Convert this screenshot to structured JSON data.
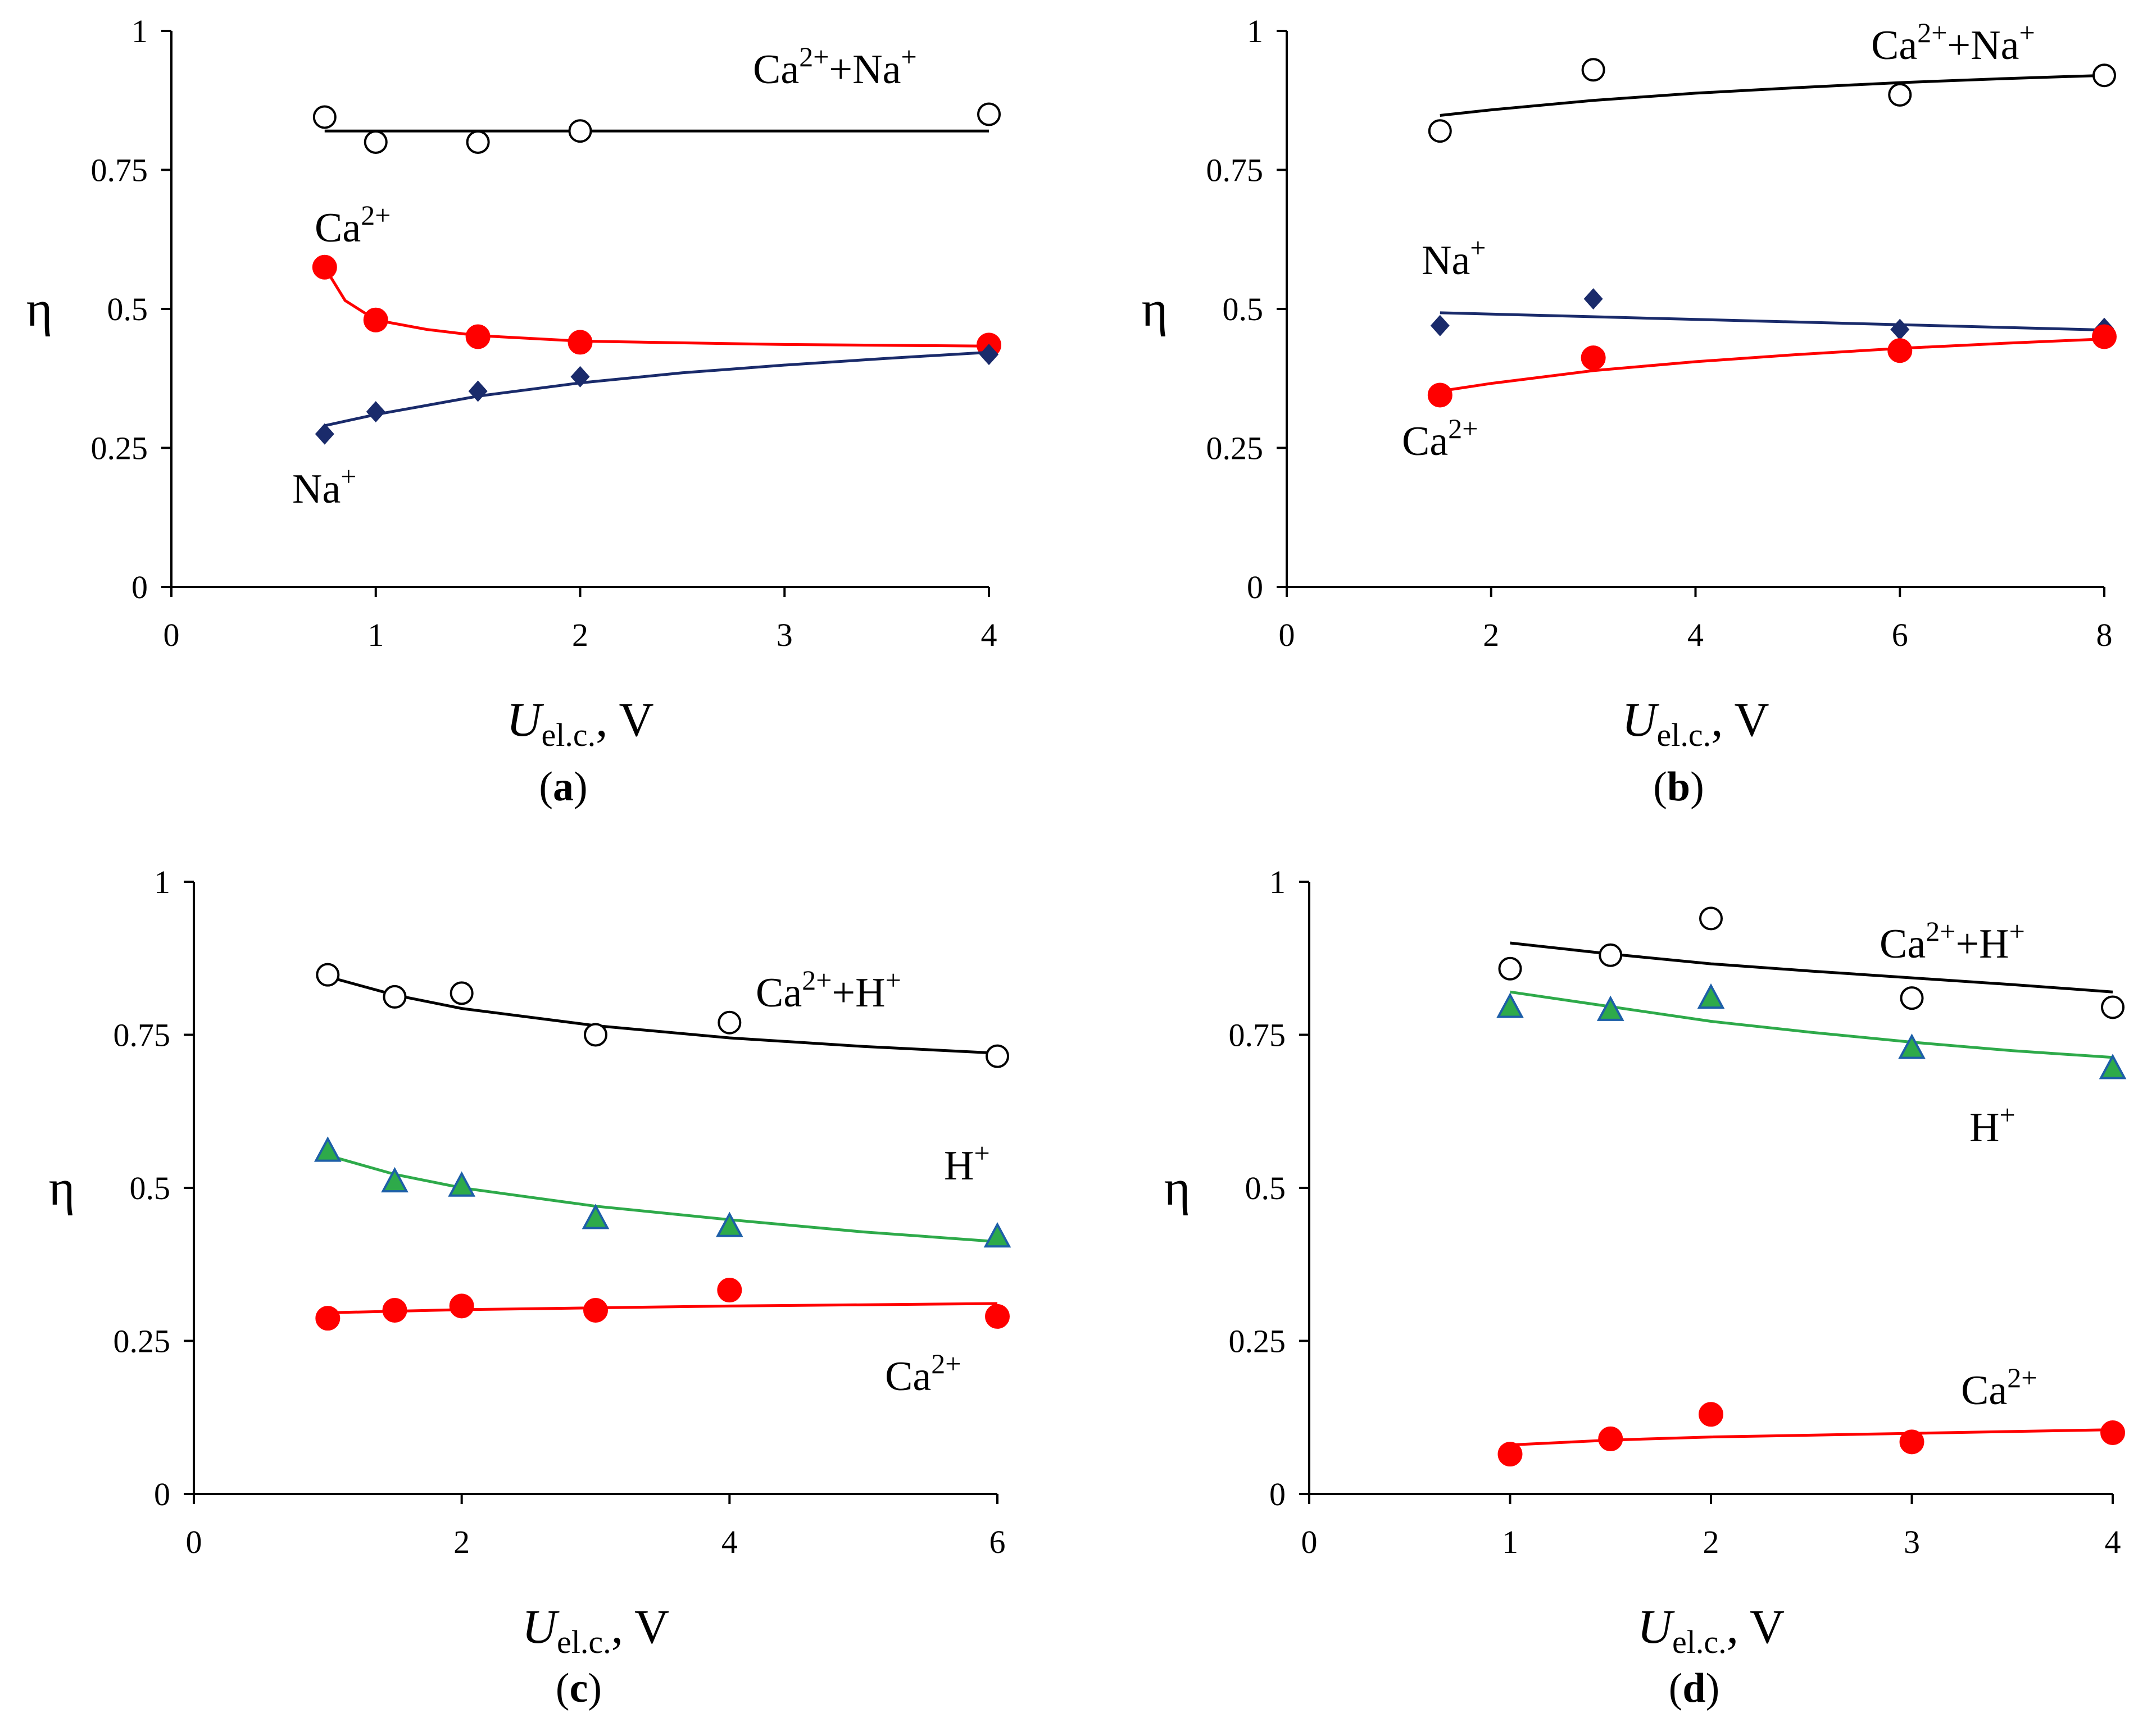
{
  "chart_data": [
    {
      "panel": "a",
      "type": "scatter",
      "tag": "a",
      "ylabel": "η",
      "xlabel": {
        "main": "U",
        "sub": "el.c.",
        "unit": ", V"
      },
      "xlim": [
        0,
        4
      ],
      "ylim": [
        0,
        1
      ],
      "xticks": [
        0,
        1,
        2,
        3,
        4
      ],
      "xtick_labels": [
        "0",
        "1",
        "2",
        "3",
        "4"
      ],
      "yticks": [
        0,
        0.25,
        0.5,
        0.75,
        1
      ],
      "ytick_labels": [
        "0",
        "0.25",
        "0.5",
        "0.75",
        "1"
      ],
      "series": [
        {
          "label": {
            "base": "Ca",
            "sup": "2+",
            "mid": "+Na",
            "sup2": "+"
          },
          "marker": "open-circle",
          "color": "#000000",
          "points": [
            [
              0.75,
              0.845
            ],
            [
              1,
              0.8
            ],
            [
              1.5,
              0.8
            ],
            [
              2,
              0.82
            ],
            [
              4,
              0.85
            ]
          ],
          "fit": [
            [
              0.75,
              0.82
            ],
            [
              4,
              0.82
            ]
          ]
        },
        {
          "label": {
            "base": "Ca",
            "sup": "2+"
          },
          "marker": "filled-circle",
          "color": "#ff0000",
          "points": [
            [
              0.75,
              0.575
            ],
            [
              1,
              0.48
            ],
            [
              1.5,
              0.45
            ],
            [
              2,
              0.44
            ],
            [
              4,
              0.435
            ]
          ],
          "fit": [
            [
              0.75,
              0.575
            ],
            [
              0.85,
              0.515
            ],
            [
              1,
              0.48
            ],
            [
              1.25,
              0.463
            ],
            [
              1.5,
              0.452
            ],
            [
              2,
              0.442
            ],
            [
              3,
              0.436
            ],
            [
              4,
              0.433
            ]
          ]
        },
        {
          "label": {
            "base": "Na",
            "sup": "+"
          },
          "marker": "diamond",
          "color": "#1a2b6b",
          "points": [
            [
              0.75,
              0.275
            ],
            [
              1,
              0.315
            ],
            [
              1.5,
              0.352
            ],
            [
              2,
              0.378
            ],
            [
              4,
              0.418
            ]
          ],
          "fit": [
            [
              0.75,
              0.29
            ],
            [
              1,
              0.31
            ],
            [
              1.5,
              0.343
            ],
            [
              2,
              0.367
            ],
            [
              2.5,
              0.385
            ],
            [
              3,
              0.399
            ],
            [
              3.5,
              0.411
            ],
            [
              4,
              0.422
            ]
          ]
        }
      ]
    },
    {
      "panel": "b",
      "type": "scatter",
      "tag": "b",
      "ylabel": "η",
      "xlabel": {
        "main": "U",
        "sub": "el.c.",
        "unit": ", V"
      },
      "xlim": [
        0,
        8
      ],
      "ylim": [
        0,
        1
      ],
      "xticks": [
        0,
        2,
        4,
        6,
        8
      ],
      "xtick_labels": [
        "0",
        "2",
        "4",
        "6",
        "8"
      ],
      "yticks": [
        0,
        0.25,
        0.5,
        0.75,
        1
      ],
      "ytick_labels": [
        "0",
        "0.25",
        "0.5",
        "0.75",
        "1"
      ],
      "series": [
        {
          "label": {
            "base": "Ca",
            "sup": "2+",
            "mid": "+Na",
            "sup2": "+"
          },
          "marker": "open-circle",
          "color": "#000000",
          "points": [
            [
              1.5,
              0.82
            ],
            [
              3,
              0.93
            ],
            [
              6,
              0.885
            ],
            [
              8,
              0.92
            ]
          ],
          "fit": [
            [
              1.5,
              0.848
            ],
            [
              2,
              0.858
            ],
            [
              3,
              0.875
            ],
            [
              4,
              0.888
            ],
            [
              5,
              0.898
            ],
            [
              6,
              0.907
            ],
            [
              7,
              0.914
            ],
            [
              8,
              0.92
            ]
          ]
        },
        {
          "label": {
            "base": "Na",
            "sup": "+"
          },
          "marker": "diamond",
          "color": "#1a2b6b",
          "points": [
            [
              1.5,
              0.47
            ],
            [
              3,
              0.518
            ],
            [
              6,
              0.463
            ],
            [
              8,
              0.465
            ]
          ],
          "fit": [
            [
              1.5,
              0.493
            ],
            [
              8,
              0.462
            ]
          ]
        },
        {
          "label": {
            "base": "Ca",
            "sup": "2+"
          },
          "marker": "filled-circle",
          "color": "#ff0000",
          "points": [
            [
              1.5,
              0.345
            ],
            [
              3,
              0.412
            ],
            [
              6,
              0.425
            ],
            [
              8,
              0.45
            ]
          ],
          "fit": [
            [
              1.5,
              0.352
            ],
            [
              2,
              0.366
            ],
            [
              3,
              0.389
            ],
            [
              4,
              0.405
            ],
            [
              5,
              0.418
            ],
            [
              6,
              0.429
            ],
            [
              7,
              0.438
            ],
            [
              8,
              0.446
            ]
          ]
        }
      ]
    },
    {
      "panel": "c",
      "type": "scatter",
      "tag": "c",
      "ylabel": "η",
      "xlabel": {
        "main": "U",
        "sub": "el.c.",
        "unit": ", V"
      },
      "xlim": [
        0,
        6
      ],
      "ylim": [
        0,
        1
      ],
      "xticks": [
        0,
        2,
        4,
        6
      ],
      "xtick_labels": [
        "0",
        "2",
        "4",
        "6"
      ],
      "yticks": [
        0,
        0.25,
        0.5,
        0.75,
        1
      ],
      "ytick_labels": [
        "0",
        "0.25",
        "0.5",
        "0.75",
        "1"
      ],
      "series": [
        {
          "label": {
            "base": "Ca",
            "sup": "2+",
            "mid": "+H",
            "sup2": "+"
          },
          "marker": "open-circle",
          "color": "#000000",
          "points": [
            [
              1,
              0.848
            ],
            [
              1.5,
              0.812
            ],
            [
              2,
              0.818
            ],
            [
              3,
              0.75
            ],
            [
              4,
              0.77
            ],
            [
              6,
              0.715
            ]
          ],
          "fit": [
            [
              1,
              0.845
            ],
            [
              1.5,
              0.815
            ],
            [
              2,
              0.793
            ],
            [
              3,
              0.765
            ],
            [
              4,
              0.745
            ],
            [
              5,
              0.731
            ],
            [
              6,
              0.72
            ]
          ]
        },
        {
          "label": {
            "base": "H",
            "sup": "+"
          },
          "marker": "triangle",
          "color": "#2eaa4a",
          "points": [
            [
              1,
              0.56
            ],
            [
              1.5,
              0.51
            ],
            [
              2,
              0.503
            ],
            [
              3,
              0.45
            ],
            [
              4,
              0.437
            ],
            [
              6,
              0.42
            ]
          ],
          "fit": [
            [
              1,
              0.553
            ],
            [
              1.5,
              0.522
            ],
            [
              2,
              0.5
            ],
            [
              3,
              0.47
            ],
            [
              4,
              0.448
            ],
            [
              5,
              0.428
            ],
            [
              6,
              0.412
            ]
          ]
        },
        {
          "label": {
            "base": "Ca",
            "sup": "2+"
          },
          "marker": "filled-circle",
          "color": "#ff0000",
          "points": [
            [
              1,
              0.287
            ],
            [
              1.5,
              0.3
            ],
            [
              2,
              0.307
            ],
            [
              3,
              0.3
            ],
            [
              4,
              0.333
            ],
            [
              6,
              0.29
            ]
          ],
          "fit": [
            [
              1,
              0.296
            ],
            [
              2,
              0.301
            ],
            [
              3,
              0.304
            ],
            [
              4,
              0.307
            ],
            [
              5,
              0.309
            ],
            [
              6,
              0.311
            ]
          ]
        }
      ]
    },
    {
      "panel": "d",
      "type": "scatter",
      "tag": "d",
      "ylabel": "η",
      "xlabel": {
        "main": "U",
        "sub": "el.c.",
        "unit": ", V"
      },
      "xlim": [
        0,
        4
      ],
      "ylim": [
        0,
        1
      ],
      "xticks": [
        0,
        1,
        2,
        3,
        4
      ],
      "xtick_labels": [
        "0",
        "1",
        "2",
        "3",
        "4"
      ],
      "yticks": [
        0,
        0.25,
        0.5,
        0.75,
        1
      ],
      "ytick_labels": [
        "0",
        "0.25",
        "0.5",
        "0.75",
        "1"
      ],
      "series": [
        {
          "label": {
            "base": "Ca",
            "sup": "2+",
            "mid": "+H",
            "sup2": "+"
          },
          "marker": "open-circle",
          "color": "#000000",
          "points": [
            [
              1,
              0.858
            ],
            [
              1.5,
              0.88
            ],
            [
              2,
              0.94
            ],
            [
              3,
              0.81
            ],
            [
              4,
              0.795
            ]
          ],
          "fit": [
            [
              1,
              0.9
            ],
            [
              1.5,
              0.882
            ],
            [
              2,
              0.866
            ],
            [
              2.5,
              0.854
            ],
            [
              3,
              0.843
            ],
            [
              3.5,
              0.832
            ],
            [
              4,
              0.82
            ]
          ]
        },
        {
          "label": {
            "base": "H",
            "sup": "+"
          },
          "marker": "triangle",
          "color": "#2eaa4a",
          "points": [
            [
              1,
              0.795
            ],
            [
              1.5,
              0.79
            ],
            [
              2,
              0.81
            ],
            [
              3,
              0.728
            ],
            [
              4,
              0.695
            ]
          ],
          "fit": [
            [
              1,
              0.82
            ],
            [
              1.5,
              0.796
            ],
            [
              2,
              0.772
            ],
            [
              2.5,
              0.754
            ],
            [
              3,
              0.738
            ],
            [
              3.5,
              0.724
            ],
            [
              4,
              0.713
            ]
          ]
        },
        {
          "label": {
            "base": "Ca",
            "sup": "2+"
          },
          "marker": "filled-circle",
          "color": "#ff0000",
          "points": [
            [
              1,
              0.065
            ],
            [
              1.5,
              0.09
            ],
            [
              2,
              0.13
            ],
            [
              3,
              0.085
            ],
            [
              4,
              0.1
            ]
          ],
          "fit": [
            [
              1,
              0.08
            ],
            [
              1.5,
              0.088
            ],
            [
              2,
              0.093
            ],
            [
              3,
              0.099
            ],
            [
              4,
              0.105
            ]
          ]
        }
      ]
    }
  ]
}
